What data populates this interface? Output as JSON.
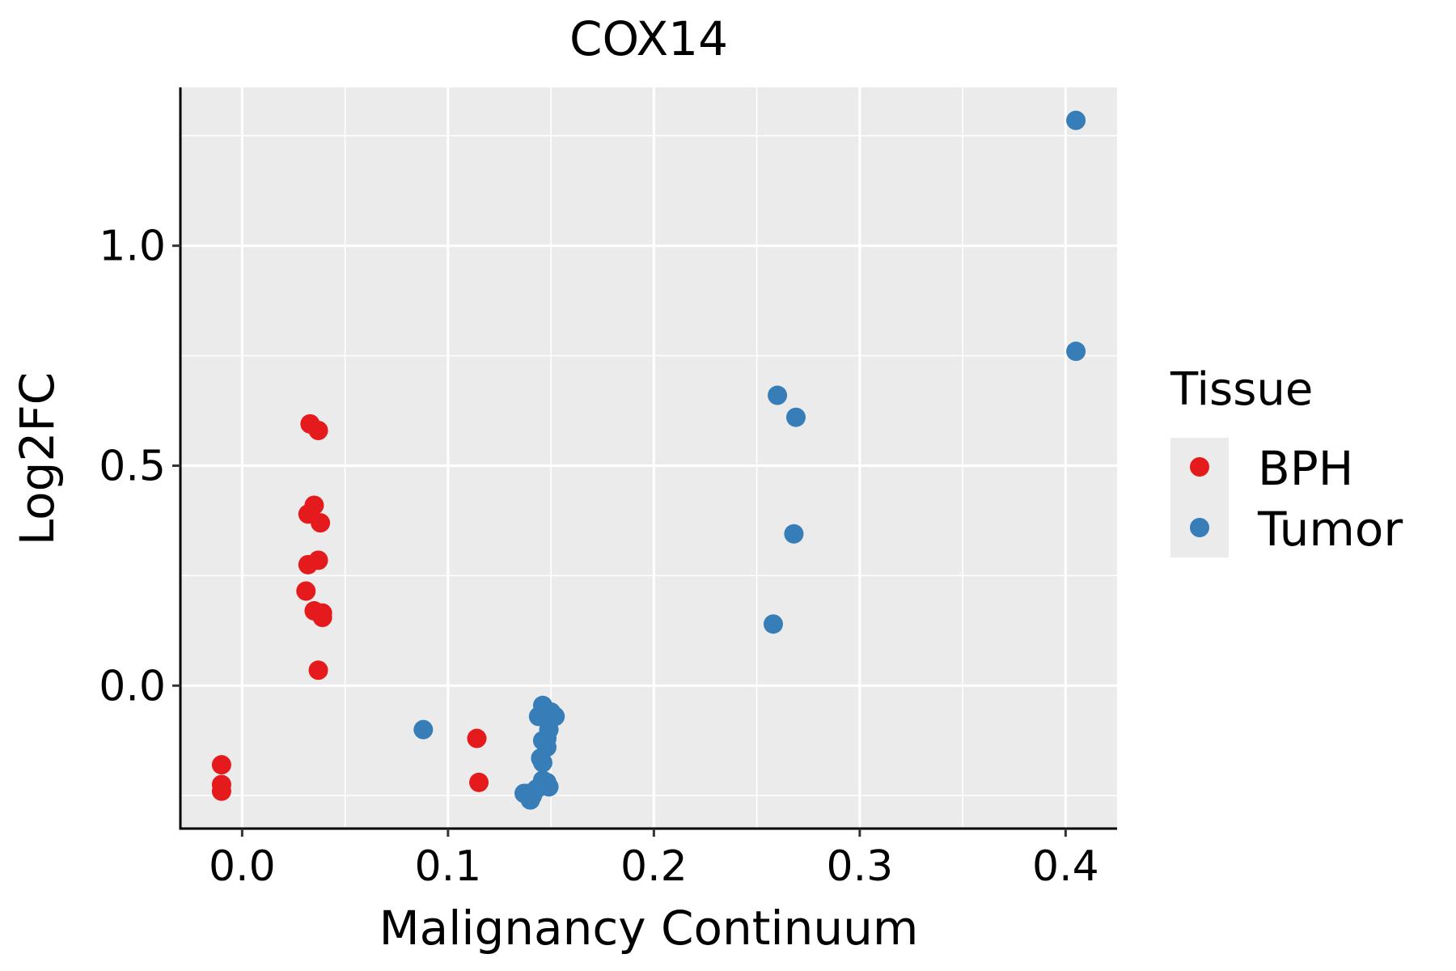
{
  "chart_data": {
    "type": "scatter",
    "title": "COX14",
    "xlabel": "Malignancy Continuum",
    "ylabel": "Log2FC",
    "xlim": [
      -0.03,
      0.425
    ],
    "ylim": [
      -0.325,
      1.36
    ],
    "x_ticks": [
      0.0,
      0.1,
      0.2,
      0.3,
      0.4
    ],
    "x_tick_labels": [
      "0.0",
      "0.1",
      "0.2",
      "0.3",
      "0.4"
    ],
    "y_ticks": [
      0.0,
      0.5,
      1.0
    ],
    "y_tick_labels": [
      "0.0",
      "0.5",
      "1.0"
    ],
    "x_minor": [
      0.05,
      0.15,
      0.25,
      0.35
    ],
    "y_minor": [
      -0.25,
      0.25,
      0.75,
      1.25
    ],
    "legend": {
      "title": "Tissue",
      "position": "right"
    },
    "series": [
      {
        "name": "BPH",
        "color": "#e41a1c",
        "points": [
          {
            "x": -0.01,
            "y": -0.18
          },
          {
            "x": -0.01,
            "y": -0.225
          },
          {
            "x": -0.01,
            "y": -0.24
          },
          {
            "x": 0.033,
            "y": 0.595
          },
          {
            "x": 0.037,
            "y": 0.58
          },
          {
            "x": 0.035,
            "y": 0.41
          },
          {
            "x": 0.032,
            "y": 0.39
          },
          {
            "x": 0.038,
            "y": 0.37
          },
          {
            "x": 0.037,
            "y": 0.285
          },
          {
            "x": 0.032,
            "y": 0.275
          },
          {
            "x": 0.031,
            "y": 0.215
          },
          {
            "x": 0.035,
            "y": 0.17
          },
          {
            "x": 0.039,
            "y": 0.165
          },
          {
            "x": 0.039,
            "y": 0.155
          },
          {
            "x": 0.037,
            "y": 0.035
          },
          {
            "x": 0.114,
            "y": -0.12
          },
          {
            "x": 0.115,
            "y": -0.22
          }
        ]
      },
      {
        "name": "Tumor",
        "color": "#377eb8",
        "points": [
          {
            "x": 0.088,
            "y": -0.1
          },
          {
            "x": 0.146,
            "y": -0.045
          },
          {
            "x": 0.15,
            "y": -0.06
          },
          {
            "x": 0.152,
            "y": -0.07
          },
          {
            "x": 0.144,
            "y": -0.07
          },
          {
            "x": 0.149,
            "y": -0.1
          },
          {
            "x": 0.148,
            "y": -0.12
          },
          {
            "x": 0.146,
            "y": -0.125
          },
          {
            "x": 0.148,
            "y": -0.14
          },
          {
            "x": 0.145,
            "y": -0.165
          },
          {
            "x": 0.146,
            "y": -0.175
          },
          {
            "x": 0.148,
            "y": -0.22
          },
          {
            "x": 0.146,
            "y": -0.215
          },
          {
            "x": 0.149,
            "y": -0.23
          },
          {
            "x": 0.143,
            "y": -0.235
          },
          {
            "x": 0.139,
            "y": -0.245
          },
          {
            "x": 0.141,
            "y": -0.25
          },
          {
            "x": 0.137,
            "y": -0.245
          },
          {
            "x": 0.14,
            "y": -0.26
          },
          {
            "x": 0.258,
            "y": 0.14
          },
          {
            "x": 0.268,
            "y": 0.345
          },
          {
            "x": 0.26,
            "y": 0.66
          },
          {
            "x": 0.269,
            "y": 0.61
          },
          {
            "x": 0.405,
            "y": 0.76
          },
          {
            "x": 0.405,
            "y": 1.285
          }
        ]
      }
    ]
  }
}
